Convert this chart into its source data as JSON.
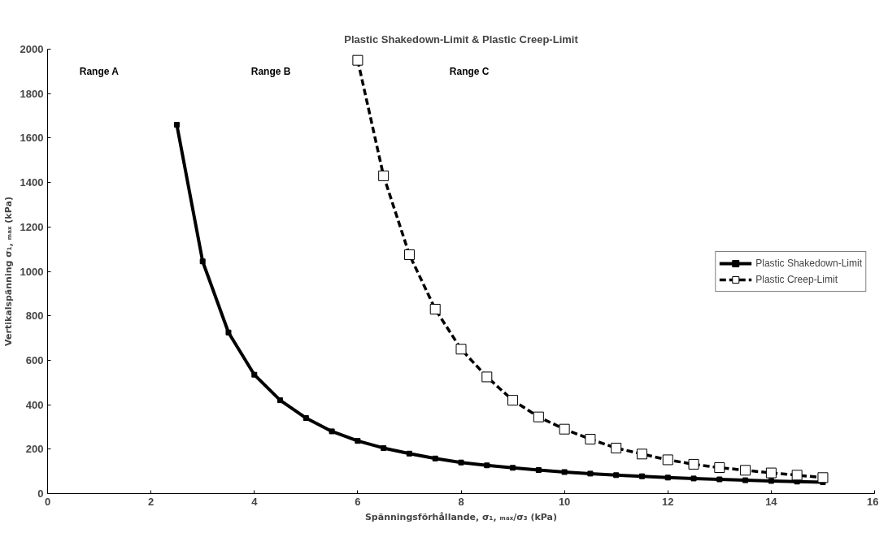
{
  "chart_data": {
    "type": "line",
    "title": "Plastic Shakedown-Limit & Plastic Creep-Limit",
    "xlabel": "Spänningsförhållande, σ₁, ₘₐₓ/σ₃ (kPa)",
    "ylabel": "Vertikalspänning σ₁, ₘₐₓ (kPa)",
    "xlim": [
      0,
      16
    ],
    "ylim": [
      0,
      2000
    ],
    "xticks": [
      0,
      2,
      4,
      6,
      8,
      10,
      12,
      14,
      16
    ],
    "yticks": [
      0,
      200,
      400,
      600,
      800,
      1000,
      1200,
      1400,
      1600,
      1800,
      2000
    ],
    "grid": false,
    "legend": "right",
    "series": [
      {
        "name": "Plastic Shakedown-Limit",
        "color": "#000000",
        "line_style": "solid",
        "marker": "square",
        "x": [
          2.5,
          3,
          3.5,
          4,
          4.5,
          5,
          5.5,
          6,
          6.5,
          7,
          7.5,
          8,
          8.5,
          9,
          9.5,
          10,
          10.5,
          11,
          11.5,
          12,
          12.5,
          13,
          13.5,
          14,
          14.5,
          15
        ],
        "values": [
          1660,
          1045,
          725,
          535,
          420,
          340,
          280,
          237,
          205,
          180,
          158,
          140,
          127,
          116,
          106,
          97,
          90,
          83,
          78,
          72,
          68,
          64,
          60,
          57,
          54,
          51
        ]
      },
      {
        "name": "Plastic Creep-Limit",
        "color": "#000000",
        "line_style": "dashed",
        "marker": "square",
        "x": [
          6,
          6.5,
          7,
          7.5,
          8,
          8.5,
          9,
          9.5,
          10,
          10.5,
          11,
          11.5,
          12,
          12.5,
          13,
          13.5,
          14,
          14.5,
          15
        ],
        "values": [
          1950,
          1430,
          1075,
          830,
          650,
          525,
          420,
          345,
          290,
          245,
          205,
          178,
          152,
          132,
          117,
          105,
          93,
          83,
          72
        ]
      }
    ],
    "annotations": [
      "Range A",
      "Range B",
      "Range C"
    ]
  }
}
